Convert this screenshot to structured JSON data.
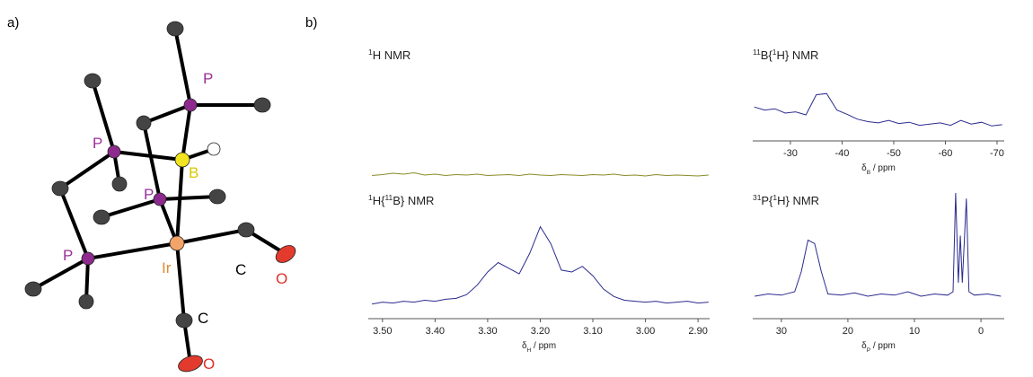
{
  "panel_labels": [
    "a)",
    "b)"
  ],
  "molecule": {
    "labels": [
      {
        "text": "P",
        "color": "#9a2f9a"
      },
      {
        "text": "P",
        "color": "#9a2f9a"
      },
      {
        "text": "B",
        "color": "#d8c800"
      },
      {
        "text": "P",
        "color": "#9a2f9a"
      },
      {
        "text": "P",
        "color": "#9a2f9a"
      },
      {
        "text": "Ir",
        "color": "#e08a30"
      },
      {
        "text": "C",
        "color": "#000000"
      },
      {
        "text": "O",
        "color": "#e0302a"
      },
      {
        "text": "C",
        "color": "#000000"
      },
      {
        "text": "O",
        "color": "#e0302a"
      }
    ]
  },
  "chart_data": [
    {
      "type": "line",
      "title": [
        {
          "text": "1",
          "sup": true
        },
        {
          "text": "H NMR"
        }
      ],
      "color": "#8a8a2a",
      "axis": false,
      "x": [
        3.52,
        3.5,
        3.48,
        3.46,
        3.44,
        3.42,
        3.4,
        3.38,
        3.36,
        3.34,
        3.32,
        3.3,
        3.28,
        3.26,
        3.24,
        3.22,
        3.2,
        3.18,
        3.16,
        3.14,
        3.12,
        3.1,
        3.08,
        3.06,
        3.04,
        3.02,
        3.0,
        2.98,
        2.96,
        2.94,
        2.92,
        2.9,
        2.88
      ],
      "values": [
        9,
        11,
        14,
        12,
        15,
        10,
        12,
        9,
        11,
        10,
        12,
        9,
        10,
        11,
        9,
        12,
        10,
        9,
        11,
        10,
        9,
        11,
        10,
        12,
        9,
        10,
        8,
        11,
        9,
        10,
        9,
        8,
        10
      ],
      "xlim": [
        3.527,
        2.878
      ],
      "ylim": [
        0,
        100
      ]
    },
    {
      "type": "line",
      "title": [
        {
          "text": "1",
          "sup": true
        },
        {
          "text": "H{"
        },
        {
          "text": "11",
          "sup": true
        },
        {
          "text": "B} NMR"
        }
      ],
      "color": "#2b2b8f",
      "axis": true,
      "x": [
        3.52,
        3.5,
        3.48,
        3.46,
        3.44,
        3.42,
        3.4,
        3.38,
        3.36,
        3.34,
        3.32,
        3.3,
        3.28,
        3.26,
        3.24,
        3.22,
        3.2,
        3.18,
        3.16,
        3.14,
        3.12,
        3.1,
        3.08,
        3.06,
        3.04,
        3.02,
        3.0,
        2.98,
        2.96,
        2.94,
        2.92,
        2.9,
        2.88
      ],
      "values": [
        6,
        8,
        7,
        9,
        8,
        10,
        9,
        11,
        12,
        16,
        26,
        40,
        50,
        44,
        38,
        60,
        88,
        70,
        42,
        40,
        46,
        36,
        22,
        14,
        10,
        9,
        8,
        9,
        7,
        8,
        9,
        7,
        8
      ],
      "xlim": [
        3.527,
        2.878
      ],
      "ylim": [
        0,
        100
      ],
      "xticks": [
        {
          "value": 3.5,
          "label": "3.50"
        },
        {
          "value": 3.4,
          "label": "3.40"
        },
        {
          "value": 3.3,
          "label": "3.30"
        },
        {
          "value": 3.2,
          "label": "3.20"
        },
        {
          "value": 3.1,
          "label": "3.10"
        },
        {
          "value": 3.0,
          "label": "3.00"
        },
        {
          "value": 2.9,
          "label": "2.90"
        }
      ],
      "xlabel": [
        {
          "text": "δ"
        },
        {
          "text": "H",
          "sub": true
        },
        {
          "text": " / ppm"
        }
      ]
    },
    {
      "type": "line",
      "title": [
        {
          "text": "11",
          "sup": true
        },
        {
          "text": "B{"
        },
        {
          "text": "1",
          "sup": true
        },
        {
          "text": "H} NMR"
        }
      ],
      "color": "#2b2b8f",
      "axis": true,
      "x": [
        -23,
        -25,
        -27,
        -29,
        -31,
        -33,
        -35,
        -37,
        -39,
        -41,
        -43,
        -45,
        -47,
        -49,
        -51,
        -53,
        -55,
        -57,
        -59,
        -61,
        -63,
        -65,
        -67,
        -69,
        -71
      ],
      "values": [
        60,
        55,
        57,
        50,
        52,
        47,
        80,
        82,
        55,
        48,
        40,
        36,
        34,
        38,
        33,
        35,
        30,
        32,
        34,
        30,
        38,
        32,
        35,
        29,
        31
      ],
      "xlim": [
        -22.7,
        -71.4
      ],
      "ylim": [
        0,
        100
      ],
      "xticks": [
        -30,
        -40,
        -50,
        -60,
        -70
      ],
      "xlabel": [
        {
          "text": "δ"
        },
        {
          "text": "B",
          "sub": true
        },
        {
          "text": " / ppm"
        }
      ]
    },
    {
      "type": "line",
      "title": [
        {
          "text": "31",
          "sup": true
        },
        {
          "text": "P{"
        },
        {
          "text": "1",
          "sup": true
        },
        {
          "text": "H} NMR"
        }
      ],
      "color": "#2b2b8f",
      "axis": true,
      "x": [
        34,
        32,
        30,
        28,
        27,
        26,
        25,
        24,
        23,
        21,
        19,
        17,
        15,
        13,
        11,
        9,
        7,
        5,
        4.2,
        3.8,
        3.4,
        3.1,
        2.8,
        2.2,
        1.8,
        1,
        -1,
        -3
      ],
      "values": [
        8,
        10,
        9,
        12,
        30,
        58,
        55,
        30,
        10,
        9,
        11,
        8,
        10,
        9,
        12,
        8,
        10,
        9,
        12,
        100,
        20,
        62,
        20,
        95,
        12,
        9,
        10,
        8
      ],
      "xlim": [
        34.3,
        -3.5
      ],
      "ylim": [
        0,
        100
      ],
      "xticks": [
        30,
        20,
        10,
        0
      ],
      "xlabel": [
        {
          "text": "δ"
        },
        {
          "text": "P",
          "sub": true
        },
        {
          "text": " / ppm"
        }
      ]
    }
  ]
}
